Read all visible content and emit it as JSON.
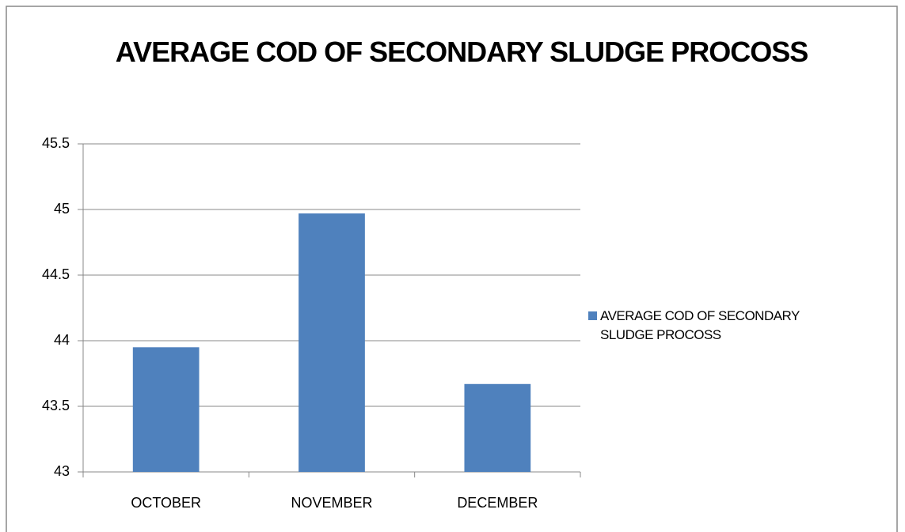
{
  "chart_data": {
    "type": "bar",
    "title": "AVERAGE COD OF SECONDARY SLUDGE PROCOSS",
    "categories": [
      "OCTOBER",
      "NOVEMBER",
      "DECEMBER"
    ],
    "series": [
      {
        "name": "AVERAGE COD OF SECONDARY SLUDGE PROCOSS",
        "color": "#4f81bd",
        "values": [
          43.95,
          44.97,
          43.67
        ]
      }
    ],
    "ylim": [
      43,
      45.5
    ],
    "yticks": [
      43,
      43.5,
      44,
      44.5,
      45,
      45.5
    ],
    "grid": true,
    "legend": "right"
  }
}
